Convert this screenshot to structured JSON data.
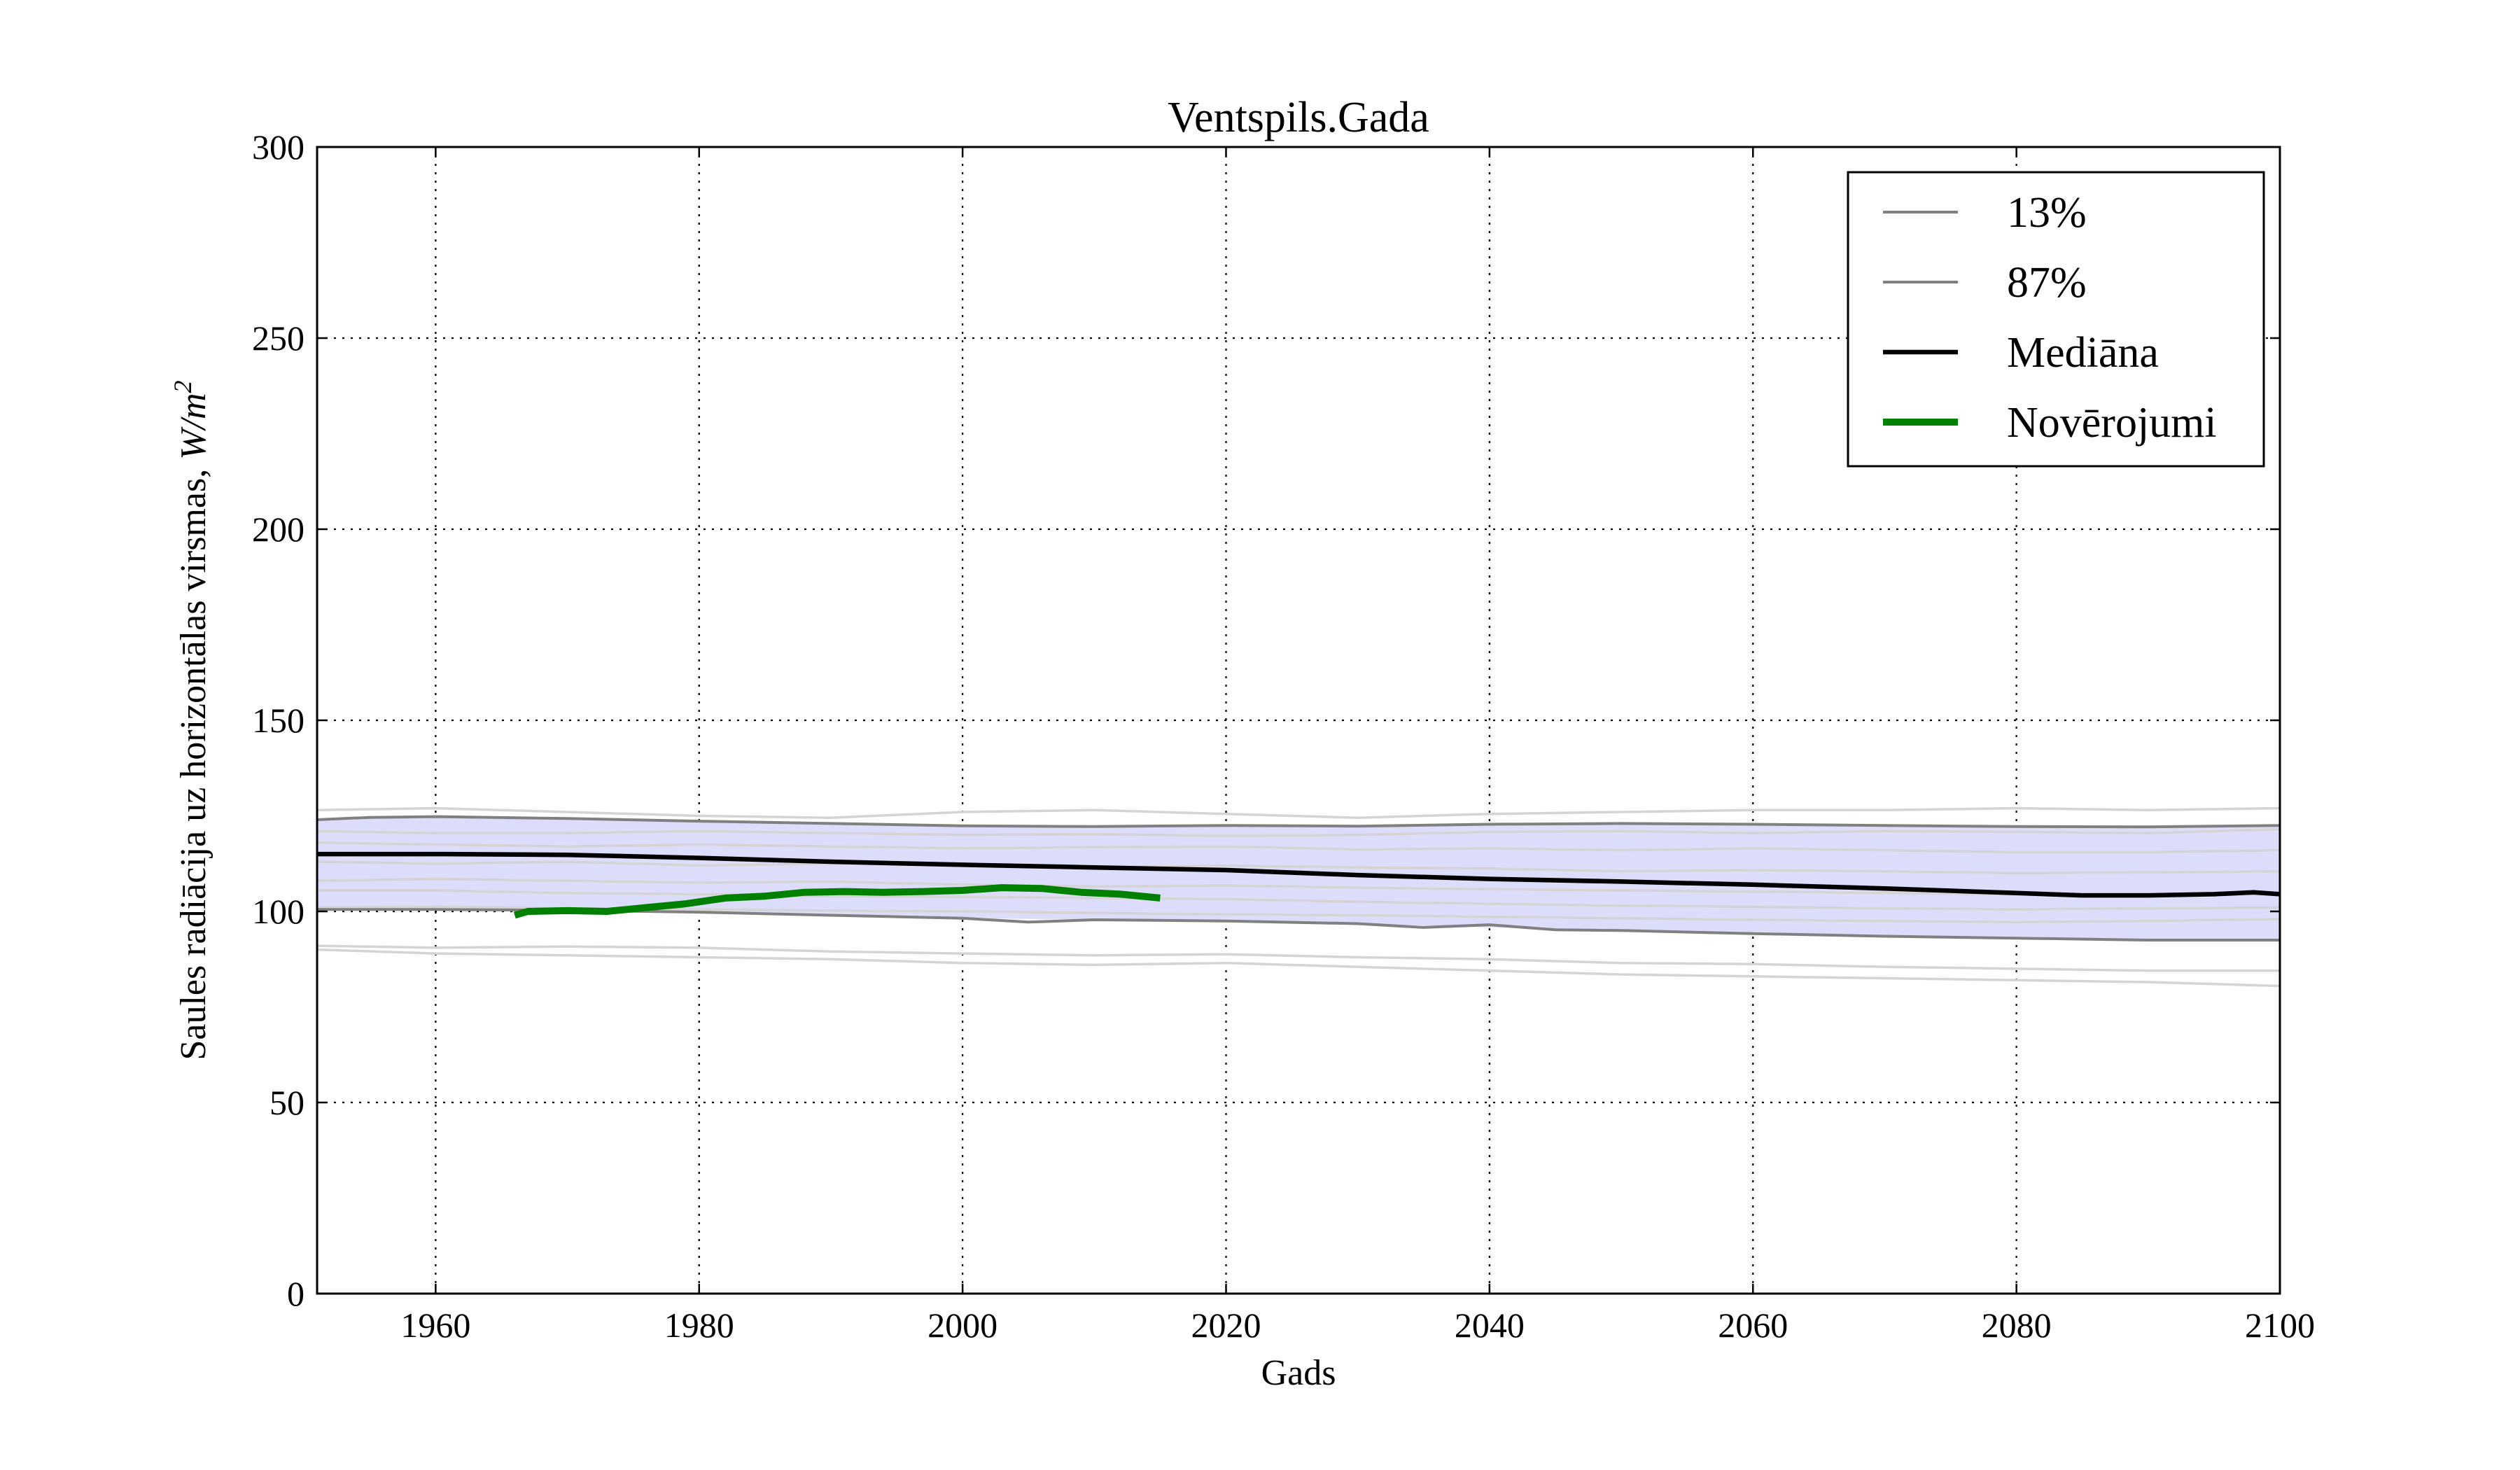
{
  "chart_data": {
    "type": "line",
    "title": "Ventspils.Gada",
    "xlabel": "Gads",
    "ylabel": "Saules radiācija uz horizontālas virsmas, ",
    "ylabel_unit": "W/m",
    "ylabel_unit_exp": "2",
    "xlim": [
      1951,
      2100
    ],
    "ylim": [
      0,
      300
    ],
    "xticks": [
      1960,
      1980,
      2000,
      2020,
      2040,
      2060,
      2080,
      2100
    ],
    "yticks": [
      0,
      50,
      100,
      150,
      200,
      250,
      300
    ],
    "grid": true,
    "legend_position": "top-right",
    "colors": {
      "band_fill": "#dcdcfb",
      "ensemble": "#d4d4d4",
      "percentile": "#808080",
      "median": "#000000",
      "observations": "#008000"
    },
    "band": {
      "x": [
        1951,
        1960,
        1970,
        1980,
        1990,
        2000,
        2010,
        2020,
        2030,
        2040,
        2050,
        2060,
        2070,
        2080,
        2090,
        2100
      ],
      "lower": [
        100.5,
        100.5,
        100.3,
        99.8,
        99,
        98.2,
        97.8,
        97.5,
        96.8,
        95.8,
        95,
        94.2,
        93.5,
        93,
        92.5,
        92.5
      ],
      "upper": [
        124,
        124.8,
        124.3,
        123.6,
        123,
        122.4,
        122.2,
        122.5,
        122.3,
        122.8,
        123,
        122.8,
        122.5,
        122.2,
        122.1,
        122.5
      ]
    },
    "ensemble": [
      {
        "x": [
          1951,
          1960,
          1970,
          1980,
          1990,
          2000,
          2010,
          2020,
          2030,
          2040,
          2050,
          2060,
          2070,
          2080,
          2090,
          2100
        ],
        "values": [
          126.5,
          127,
          126,
          125,
          124.5,
          126,
          126.5,
          125.5,
          124.5,
          125.5,
          126,
          126.5,
          126.5,
          127,
          126.5,
          127
        ]
      },
      {
        "x": [
          1951,
          1960,
          1970,
          1980,
          1990,
          2000,
          2010,
          2020,
          2030,
          2040,
          2050,
          2060,
          2070,
          2080,
          2090,
          2100
        ],
        "values": [
          121,
          120.5,
          120.5,
          121,
          120.5,
          120,
          120.2,
          119.8,
          120,
          120.8,
          121,
          120.5,
          121,
          120.8,
          120.5,
          121.5
        ]
      },
      {
        "x": [
          1951,
          1960,
          1970,
          1980,
          1990,
          2000,
          2010,
          2020,
          2030,
          2040,
          2050,
          2060,
          2070,
          2080,
          2090,
          2100
        ],
        "values": [
          118,
          117.5,
          117,
          117.5,
          117,
          116.5,
          116.8,
          117,
          116.2,
          116.5,
          116,
          116.5,
          116,
          115.5,
          115.5,
          116
        ]
      },
      {
        "x": [
          1951,
          1960,
          1970,
          1980,
          1990,
          2000,
          2010,
          2020,
          2030,
          2040,
          2050,
          2060,
          2070,
          2080,
          2090,
          2100
        ],
        "values": [
          113,
          112.5,
          113,
          112,
          112.5,
          112.2,
          111.5,
          112,
          111.5,
          111.2,
          110.5,
          110.8,
          110.5,
          110,
          110.2,
          110.5
        ]
      },
      {
        "x": [
          1951,
          1960,
          1970,
          1980,
          1990,
          2000,
          2010,
          2020,
          2030,
          2040,
          2050,
          2060,
          2070,
          2080,
          2090,
          2100
        ],
        "values": [
          108,
          108.5,
          108,
          107.5,
          107.8,
          107,
          106.5,
          106.8,
          106.2,
          105.8,
          105.5,
          105.2,
          104.8,
          104.5,
          104.2,
          104.5
        ]
      },
      {
        "x": [
          1951,
          1960,
          1970,
          1980,
          1990,
          2000,
          2010,
          2020,
          2030,
          2040,
          2050,
          2060,
          2070,
          2080,
          2090,
          2100
        ],
        "values": [
          105.5,
          105.5,
          104.8,
          104.5,
          104,
          103.8,
          103.5,
          103.2,
          102.5,
          102,
          101.5,
          101.2,
          100.8,
          100.5,
          100.8,
          101
        ]
      },
      {
        "x": [
          1951,
          1960,
          1970,
          1980,
          1990,
          2000,
          2010,
          2020,
          2030,
          2040,
          2050,
          2060,
          2070,
          2080,
          2090,
          2100
        ],
        "values": [
          101,
          101.2,
          100.8,
          100.5,
          100.2,
          100,
          99.6,
          99.2,
          99,
          98.6,
          98.2,
          97.8,
          97.5,
          97.2,
          97.5,
          98
        ]
      },
      {
        "x": [
          1951,
          1960,
          1970,
          1980,
          1990,
          2000,
          2010,
          2020,
          2030,
          2040,
          2050,
          2060,
          2070,
          2080,
          2090,
          2100
        ],
        "values": [
          91,
          90.5,
          90.8,
          90.5,
          89.5,
          89,
          88.5,
          88.8,
          88,
          87.5,
          86.5,
          86.2,
          85.5,
          85,
          84.5,
          84.5
        ]
      },
      {
        "x": [
          1951,
          1960,
          1970,
          1980,
          1990,
          2000,
          2010,
          2020,
          2030,
          2040,
          2050,
          2060,
          2070,
          2080,
          2090,
          2100
        ],
        "values": [
          90,
          89,
          88.5,
          88,
          87.5,
          86.5,
          86,
          86.5,
          85.5,
          84.5,
          83.5,
          83,
          82.5,
          82,
          81.5,
          80.5
        ]
      }
    ],
    "series": [
      {
        "name": "13%",
        "role": "percentile",
        "x": [
          1951,
          1960,
          1970,
          1980,
          1990,
          2000,
          2005,
          2010,
          2020,
          2030,
          2035,
          2040,
          2045,
          2050,
          2060,
          2070,
          2080,
          2090,
          2100
        ],
        "values": [
          100.5,
          100.5,
          100.3,
          99.8,
          99,
          98.2,
          97.2,
          97.8,
          97.5,
          96.8,
          95.8,
          96.5,
          95.2,
          95,
          94.2,
          93.5,
          93,
          92.5,
          92.5
        ]
      },
      {
        "name": "87%",
        "role": "percentile",
        "x": [
          1951,
          1955,
          1960,
          1970,
          1980,
          1990,
          2000,
          2010,
          2020,
          2030,
          2040,
          2050,
          2060,
          2070,
          2080,
          2090,
          2100
        ],
        "values": [
          124,
          124.6,
          124.8,
          124.3,
          123.6,
          123,
          122.4,
          122.2,
          122.5,
          122.3,
          122.8,
          123,
          122.8,
          122.5,
          122.2,
          122.1,
          122.5
        ]
      },
      {
        "name": "Mediāna",
        "role": "median",
        "x": [
          1951,
          1960,
          1970,
          1980,
          1990,
          2000,
          2010,
          2020,
          2030,
          2040,
          2050,
          2060,
          2070,
          2080,
          2085,
          2090,
          2095,
          2098,
          2100
        ],
        "values": [
          115,
          115,
          114.8,
          114,
          113,
          112.2,
          111.5,
          110.8,
          109.5,
          108.5,
          107.8,
          107,
          106,
          104.8,
          104.2,
          104.2,
          104.5,
          105,
          104.5
        ]
      },
      {
        "name": "Novērojumi",
        "role": "observations",
        "x": [
          1966,
          1967,
          1970,
          1973,
          1976,
          1979,
          1982,
          1985,
          1988,
          1991,
          1994,
          1997,
          2000,
          2003,
          2006,
          2009,
          2012,
          2015
        ],
        "values": [
          99,
          100,
          100.2,
          100,
          101,
          102,
          103.5,
          104,
          105,
          105.2,
          105,
          105.2,
          105.5,
          106.2,
          106,
          105,
          104.5,
          103.5
        ]
      }
    ]
  }
}
